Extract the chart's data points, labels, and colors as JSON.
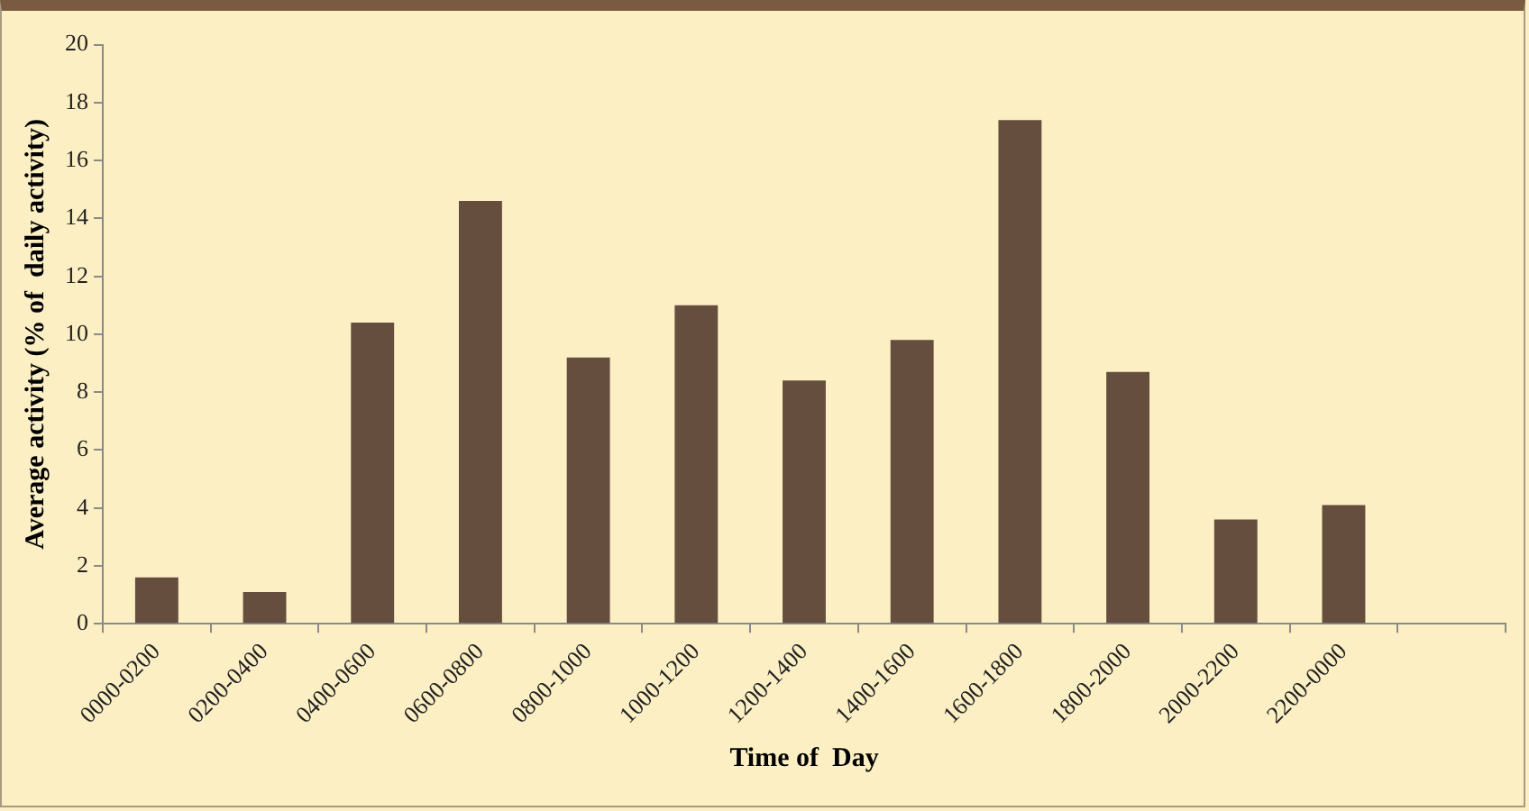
{
  "chart_data": {
    "type": "bar",
    "xlabel": "Time of  Day",
    "ylabel": "Average activity (% of  daily activity)",
    "categories": [
      "0000-0200",
      "0200-0400",
      "0400-0600",
      "0600-0800",
      "0800-1000",
      "1000-1200",
      "1200-1400",
      "1400-1600",
      "1600-1800",
      "1800-2000",
      "2000-2200",
      "2200-0000",
      null
    ],
    "values": [
      1.6,
      1.1,
      10.4,
      14.6,
      9.2,
      11.0,
      8.4,
      9.8,
      17.4,
      8.7,
      3.6,
      4.1,
      null
    ],
    "color": "#654e3e",
    "ylim": [
      0,
      20
    ],
    "yticks": [
      0,
      2,
      4,
      6,
      8,
      10,
      12,
      14,
      16,
      18,
      20
    ],
    "grid": false,
    "legend": false
  }
}
